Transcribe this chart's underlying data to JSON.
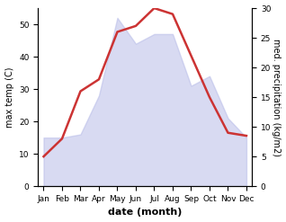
{
  "months": [
    "Jan",
    "Feb",
    "Mar",
    "Apr",
    "May",
    "Jun",
    "Jul",
    "Aug",
    "Sep",
    "Oct",
    "Nov",
    "Dec"
  ],
  "max_temp": [
    15,
    15,
    16,
    28,
    52,
    44,
    47,
    47,
    31,
    34,
    21,
    15
  ],
  "precip": [
    5,
    8,
    16,
    18,
    26,
    27,
    30,
    29,
    22,
    15,
    9,
    8.5
  ],
  "temp_ylim": [
    0,
    55
  ],
  "precip_ylim": [
    0,
    30
  ],
  "temp_fill_color": "#b8bce8",
  "temp_fill_alpha": 0.55,
  "precip_color": "#cc3333",
  "precip_linewidth": 1.8,
  "xlabel": "date (month)",
  "ylabel_left": "max temp (C)",
  "ylabel_right": "med. precipitation (kg/m2)",
  "bg_color": "#ffffff",
  "temp_yticks": [
    0,
    10,
    20,
    30,
    40,
    50
  ],
  "precip_yticks": [
    0,
    5,
    10,
    15,
    20,
    25,
    30
  ],
  "tick_fontsize": 6.5,
  "label_fontsize": 7,
  "xlabel_fontsize": 8
}
